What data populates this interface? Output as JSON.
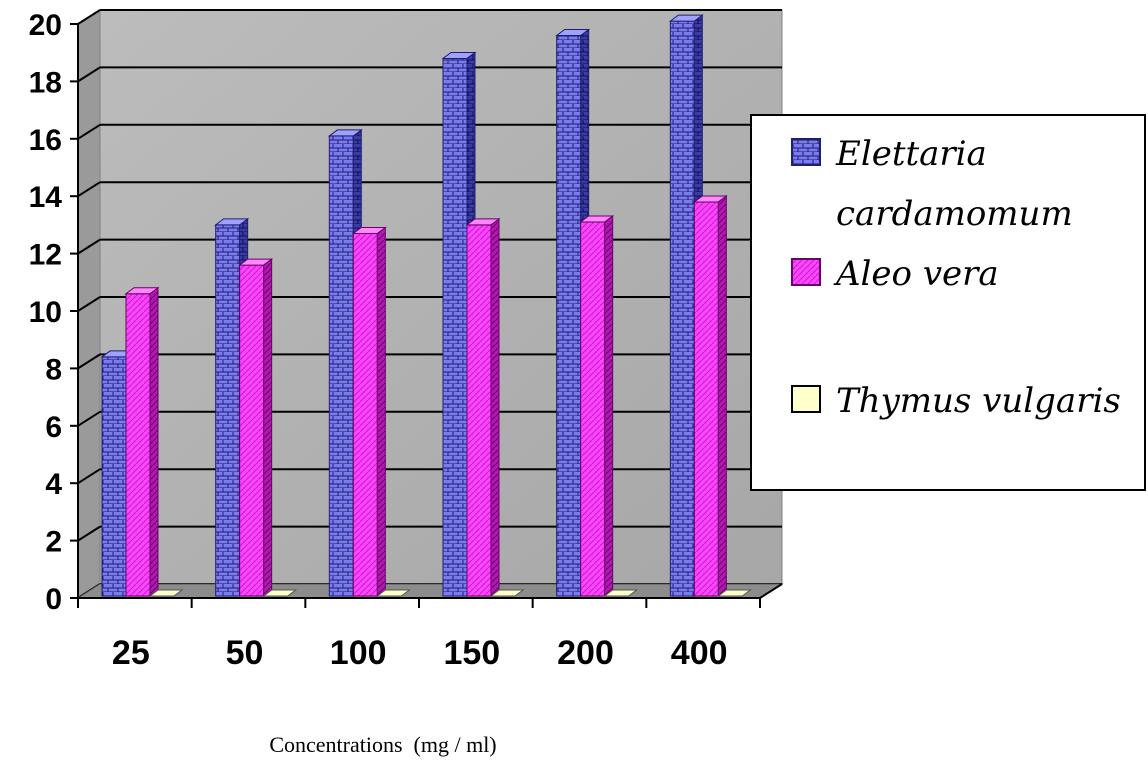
{
  "chart_data": {
    "type": "bar",
    "title": "",
    "xlabel": "Concentrations  (mg / ml)",
    "ylabel": "",
    "ylim": [
      0,
      20
    ],
    "yticks": [
      0,
      2,
      4,
      6,
      8,
      10,
      12,
      14,
      16,
      18,
      20
    ],
    "categories": [
      "25",
      "50",
      "100",
      "150",
      "200",
      "400"
    ],
    "grid": true,
    "legend_position": "right",
    "series": [
      {
        "name": "Elettaria cardamomum",
        "values": [
          8.4,
          13.0,
          16.1,
          18.8,
          19.6,
          20.1
        ],
        "color": "#7b7bf0"
      },
      {
        "name": "Aleo vera",
        "values": [
          10.6,
          11.6,
          12.7,
          13.0,
          13.1,
          13.8
        ],
        "color": "#ff44ff"
      },
      {
        "name": "Thymus vulgaris",
        "values": [
          0,
          0,
          0,
          0,
          0,
          0
        ],
        "color": "#ffffcc"
      }
    ],
    "legend_lines": [
      [
        "Elettaria",
        "cardamomum"
      ],
      [
        "Aleo vera"
      ],
      [
        "Thymus vulgaris"
      ]
    ]
  }
}
